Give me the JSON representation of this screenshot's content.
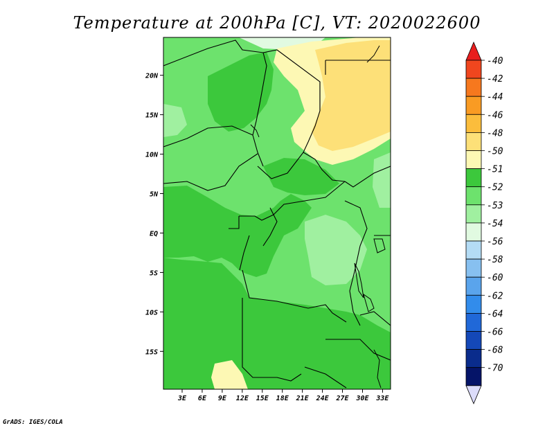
{
  "chart_data": {
    "type": "heatmap",
    "title": "Temperature at 200hPa [C], VT: 2020022600",
    "xlabel": "",
    "ylabel": "",
    "x_ticks": [
      "3E",
      "6E",
      "9E",
      "12E",
      "15E",
      "18E",
      "21E",
      "24E",
      "27E",
      "30E",
      "33E"
    ],
    "y_ticks": [
      "20N",
      "15N",
      "10N",
      "5N",
      "EQ",
      "5S",
      "10S",
      "15S"
    ],
    "x_tick_values": [
      3,
      6,
      9,
      12,
      15,
      18,
      21,
      24,
      27,
      30,
      33
    ],
    "y_tick_values": [
      20,
      15,
      10,
      5,
      0,
      -5,
      -10,
      -15
    ],
    "xlim": [
      0.2,
      34.2
    ],
    "ylim": [
      -19.8,
      24.8
    ],
    "colorbar": {
      "labels": [
        "-40",
        "-42",
        "-44",
        "-46",
        "-48",
        "-50",
        "-51",
        "-52",
        "-53",
        "-54",
        "-56",
        "-58",
        "-60",
        "-62",
        "-64",
        "-66",
        "-68",
        "-70"
      ],
      "colors": [
        "#e81e1e",
        "#f0461e",
        "#f6781e",
        "#f99b23",
        "#fbbd3c",
        "#fde078",
        "#fdf8b4",
        "#3cc83c",
        "#6de26d",
        "#a0f0a0",
        "#e1fae1",
        "#b4dcf5",
        "#87c0f0",
        "#5aa4ec",
        "#328ceb",
        "#2068d8",
        "#1448b8",
        "#0a2c8c",
        "#051468",
        "#dcdcfa"
      ]
    },
    "regions": [
      {
        "level": "-52",
        "area": "interior western and central"
      },
      {
        "level": "-53",
        "area": "widespread"
      },
      {
        "level": "-54",
        "area": "east-central near lakes"
      },
      {
        "level": "-50",
        "area": "north-east"
      },
      {
        "level": "-51",
        "area": "north-east fringe"
      }
    ],
    "grid": false,
    "legend": "right"
  },
  "credit": "GrADS: IGES/COLA"
}
